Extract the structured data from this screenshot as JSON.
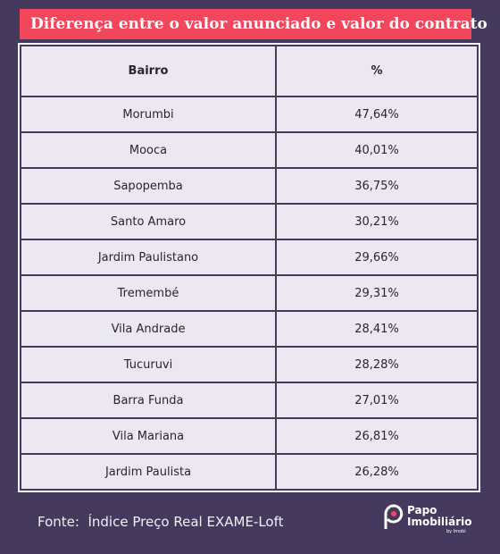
{
  "header": {
    "title": "Diferença entre o valor anunciado e valor do contrato"
  },
  "table": {
    "columns": [
      "Bairro",
      "%"
    ],
    "rows": [
      [
        "Morumbi",
        "47,64%"
      ],
      [
        "Mooca",
        "40,01%"
      ],
      [
        "Sapopemba",
        "36,75%"
      ],
      [
        "Santo Amaro",
        "30,21%"
      ],
      [
        "Jardim Paulistano",
        "29,66%"
      ],
      [
        "Tremembé",
        "29,31%"
      ],
      [
        "Vila Andrade",
        "28,41%"
      ],
      [
        "Tucuruvi",
        "28,28%"
      ],
      [
        "Barra Funda",
        "27,01%"
      ],
      [
        "Vila Mariana",
        "26,81%"
      ],
      [
        "Jardim Paulista",
        "26,28%"
      ]
    ]
  },
  "footer": {
    "source": "Fonte:  Índice Preço Real EXAME-Loft"
  },
  "logo": {
    "line1": "Papo",
    "line2": "Imobiliário",
    "tagline": "by Imobi"
  }
}
